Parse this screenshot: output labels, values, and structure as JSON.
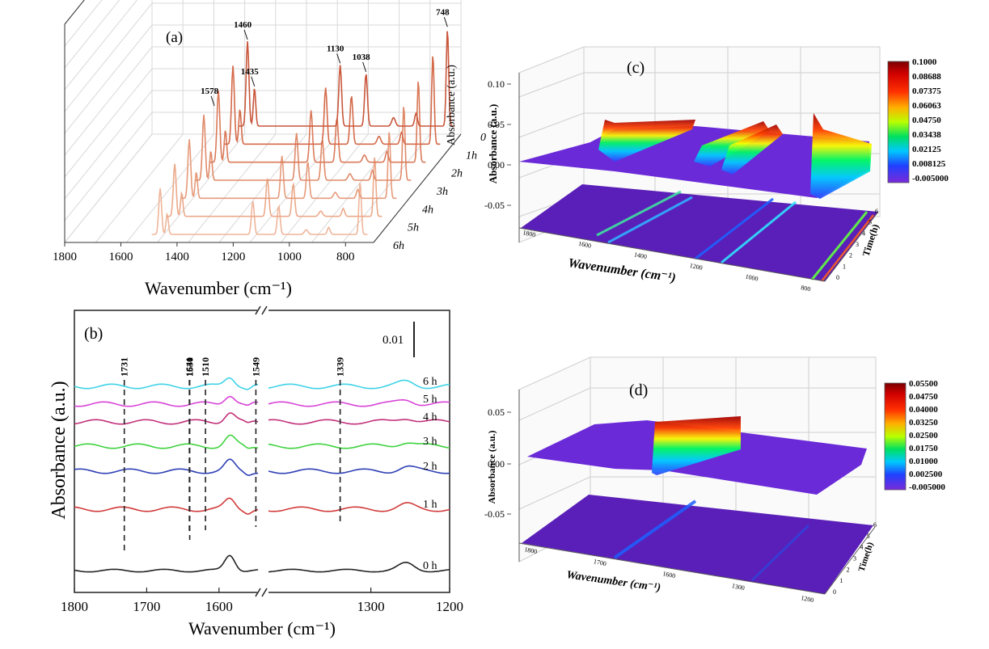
{
  "chart_data": [
    {
      "id": "a",
      "type": "line",
      "panel_label": "(a)",
      "xlabel": "Wavenumber (cm⁻¹)",
      "ylabel": "Absorbance (a.u.)",
      "xlim": [
        1800,
        700
      ],
      "x_ticks": [
        "1800",
        "1600",
        "1400",
        "1200",
        "1000",
        "800"
      ],
      "series_labels": [
        "0",
        "1h",
        "2h",
        "3h",
        "4h",
        "5h",
        "6h"
      ],
      "peaks": [
        {
          "wn": 1578,
          "h": 0.22,
          "w": 8,
          "label": "1578"
        },
        {
          "wn": 1460,
          "h": 1.0,
          "w": 7,
          "label": "1460"
        },
        {
          "wn": 1435,
          "h": 0.45,
          "w": 6,
          "label": "1435"
        },
        {
          "wn": 1130,
          "h": 0.72,
          "w": 7,
          "label": "1130"
        },
        {
          "wn": 1038,
          "h": 0.62,
          "w": 7,
          "label": "1038"
        },
        {
          "wn": 940,
          "h": 0.1,
          "w": 9,
          "label": ""
        },
        {
          "wn": 860,
          "h": 0.15,
          "w": 7,
          "label": ""
        },
        {
          "wn": 748,
          "h": 1.15,
          "w": 6,
          "label": "748"
        }
      ]
    },
    {
      "id": "b",
      "type": "line",
      "panel_label": "(b)",
      "xlabel": "Wavenumber (cm⁻¹)",
      "ylabel": "Absorbance (a.u.)",
      "x_ticks": [
        "1800",
        "1700",
        "1600",
        "1300",
        "1200"
      ],
      "scale_bar": "0.01",
      "marker_lines": [
        "1731",
        "1641",
        "1549",
        "1530",
        "1510",
        "1339"
      ],
      "series": [
        {
          "name": "0 h",
          "color": "#222222"
        },
        {
          "name": "1 h",
          "color": "#d23a3a"
        },
        {
          "name": "2 h",
          "color": "#2e3fb5"
        },
        {
          "name": "3 h",
          "color": "#3fd23f"
        },
        {
          "name": "4 h",
          "color": "#c2307a"
        },
        {
          "name": "5 h",
          "color": "#d845d8"
        },
        {
          "name": "6 h",
          "color": "#3fd3e8"
        }
      ]
    },
    {
      "id": "c",
      "type": "heatmap",
      "panel_label": "(c)",
      "xlabel": "Wavenumber (cm⁻¹)",
      "ylabel": "Absorbance (a.u.)",
      "zlabel": "Time(h)",
      "z_ticks": [
        "0.10",
        "0.05",
        "0.00",
        "-0.05"
      ],
      "x_ticks": [
        "1800",
        "1600",
        "1400",
        "1200",
        "1000",
        "800"
      ],
      "t_ticks": [
        "0",
        "1",
        "2",
        "3",
        "4",
        "5",
        "6"
      ],
      "colorbar": [
        "0.1000",
        "0.08688",
        "0.07375",
        "0.06063",
        "0.04750",
        "0.03438",
        "0.02125",
        "0.008125",
        "-0.005000"
      ]
    },
    {
      "id": "d",
      "type": "heatmap",
      "panel_label": "(d)",
      "xlabel": "Wavenumber (cm⁻¹)",
      "ylabel": "Absorbance (a.u.)",
      "zlabel": "Time(h)",
      "z_ticks": [
        "0.05",
        "0.00",
        "-0.05"
      ],
      "x_ticks": [
        "1800",
        "1700",
        "1600",
        "1300",
        "1200"
      ],
      "t_ticks": [
        "0",
        "1",
        "2",
        "3",
        "4",
        "5",
        "6"
      ],
      "colorbar": [
        "0.05500",
        "0.04750",
        "0.04000",
        "0.03250",
        "0.02500",
        "0.01750",
        "0.01000",
        "0.002500",
        "-0.005000"
      ]
    }
  ]
}
